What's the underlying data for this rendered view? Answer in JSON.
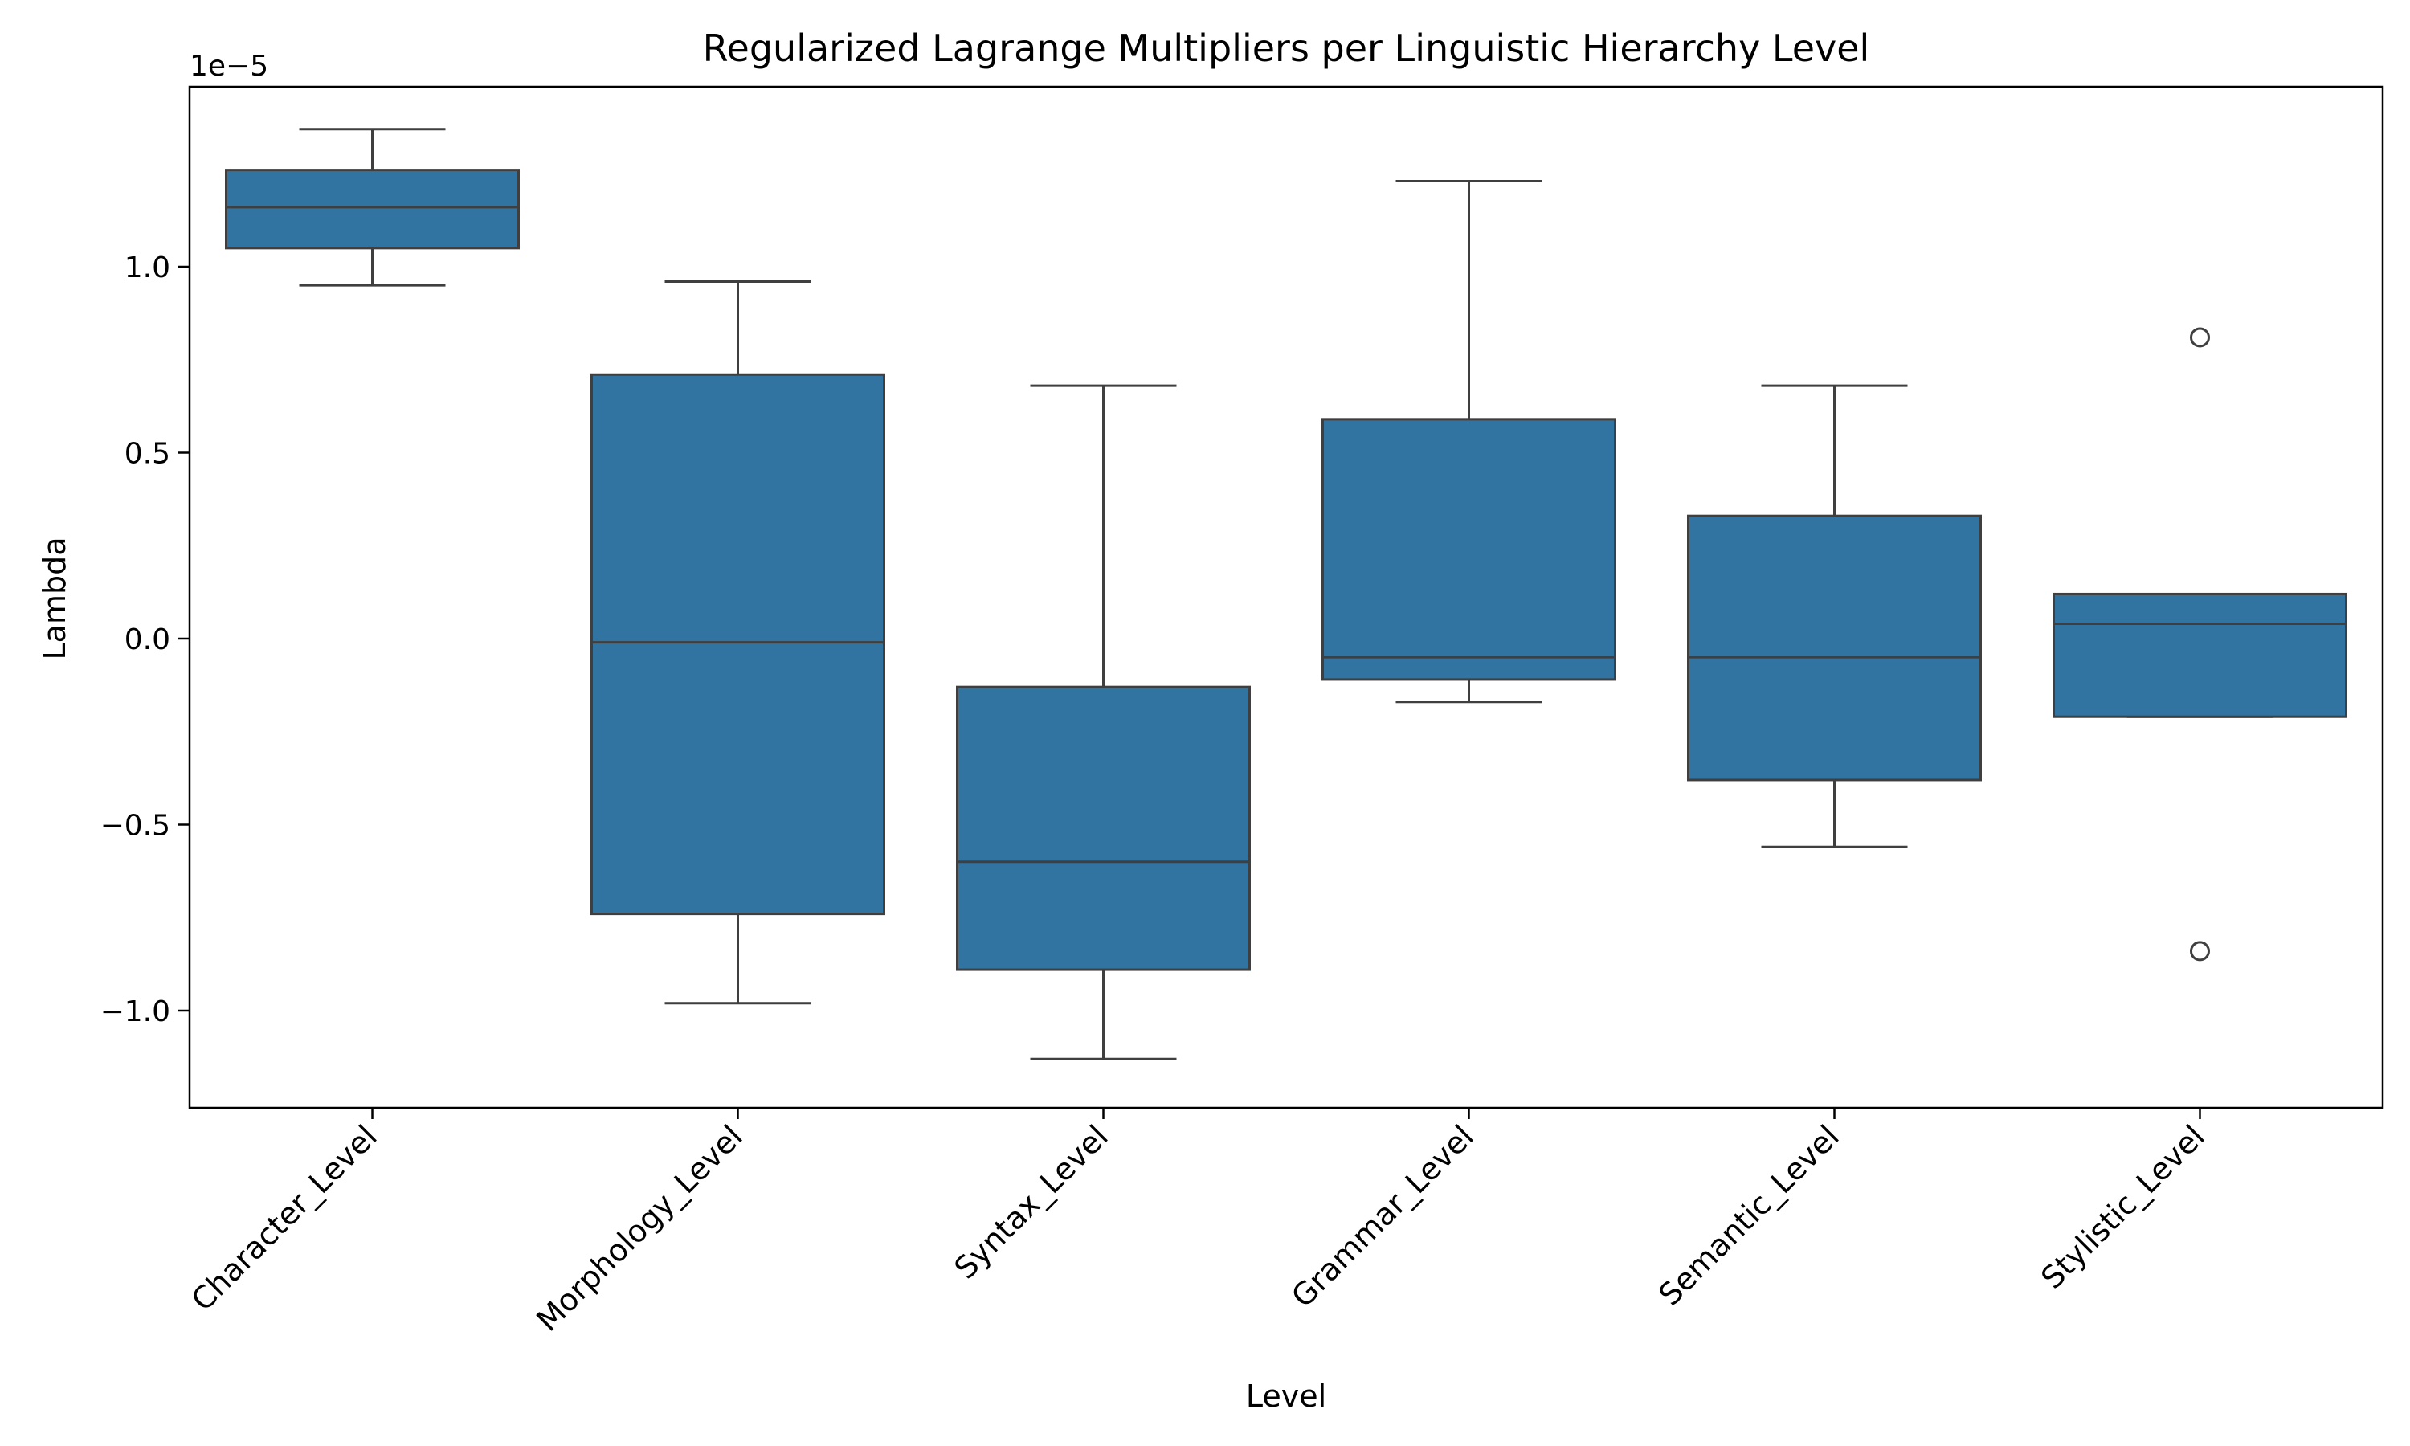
{
  "chart_data": {
    "type": "box",
    "title": "Regularized Lagrange Multipliers per Linguistic Hierarchy Level",
    "xlabel": "Level",
    "ylabel": "Lambda",
    "y_offset_label": "1e−5",
    "ylim": [
      -1.25,
      1.5
    ],
    "yticks": [
      -1.0,
      -0.5,
      0.0,
      0.5,
      1.0
    ],
    "ytick_labels": [
      "−1.0",
      "−0.5",
      "0.0",
      "0.5",
      "1.0"
    ],
    "grid": false,
    "categories": [
      "Character_Level",
      "Morphology_Level",
      "Syntax_Level",
      "Grammar_Level",
      "Semantic_Level",
      "Stylistic_Level"
    ],
    "boxes": [
      {
        "whisker_low": 0.95,
        "q1": 1.05,
        "median": 1.16,
        "q3": 1.26,
        "whisker_high": 1.37,
        "outliers": []
      },
      {
        "whisker_low": -0.98,
        "q1": -0.74,
        "median": -0.01,
        "q3": 0.71,
        "whisker_high": 0.96,
        "outliers": []
      },
      {
        "whisker_low": -1.13,
        "q1": -0.89,
        "median": -0.6,
        "q3": -0.13,
        "whisker_high": 0.68,
        "outliers": []
      },
      {
        "whisker_low": -0.17,
        "q1": -0.11,
        "median": -0.05,
        "q3": 0.59,
        "whisker_high": 1.23,
        "outliers": []
      },
      {
        "whisker_low": -0.56,
        "q1": -0.38,
        "median": -0.05,
        "q3": 0.33,
        "whisker_high": 0.68,
        "outliers": []
      },
      {
        "whisker_low": -0.21,
        "q1": -0.21,
        "median": 0.04,
        "q3": 0.12,
        "whisker_high": 0.12,
        "outliers": [
          0.81,
          -0.84
        ]
      }
    ],
    "colors": {
      "box_fill": "#3274a1",
      "line": "#3f3f3f",
      "axis": "#000000"
    }
  }
}
